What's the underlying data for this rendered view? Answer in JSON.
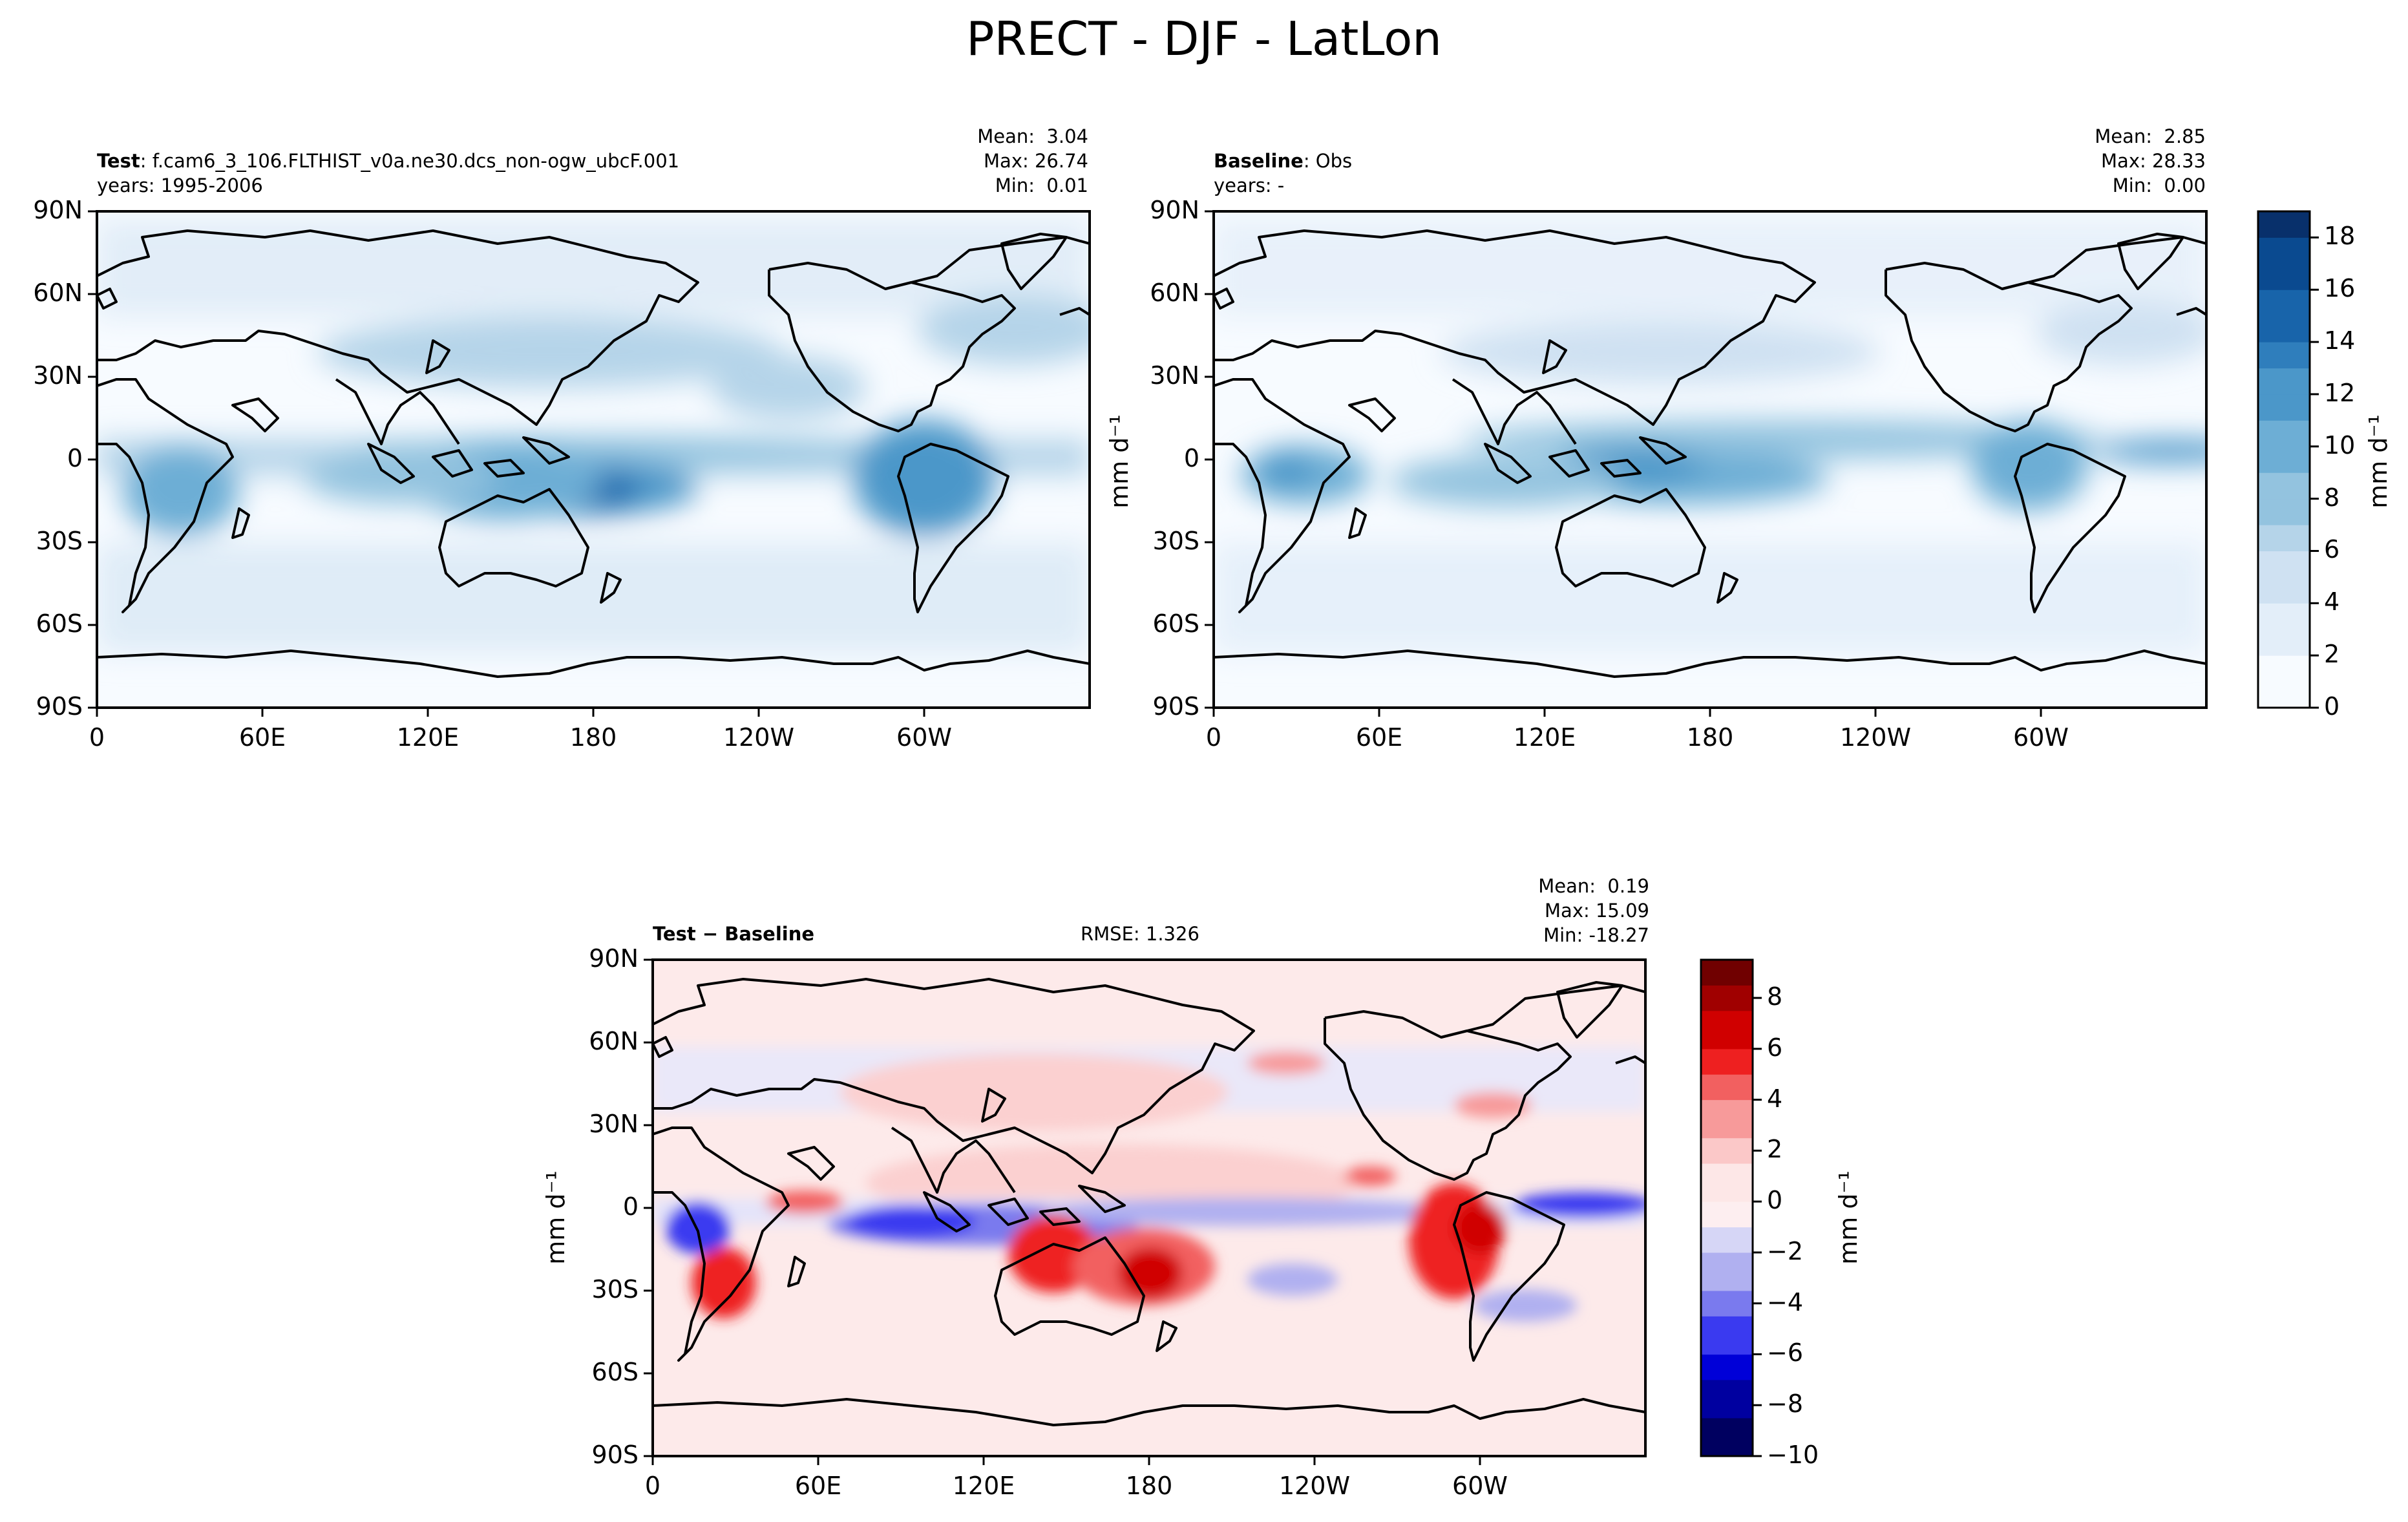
{
  "figure": {
    "title": "PRECT - DJF - LatLon"
  },
  "colors": {
    "sequential": [
      "#f7fbff",
      "#e3eef9",
      "#cfe1f2",
      "#b5d4e9",
      "#93c3df",
      "#6daed5",
      "#4b97c9",
      "#2f7ebc",
      "#1864aa",
      "#0a4a90",
      "#08306b"
    ],
    "diverging_neg": [
      "#fdeef0",
      "#d6d6f6",
      "#b0b0f0",
      "#7a7aee",
      "#3a3af0",
      "#0000d8",
      "#0000a0",
      "#000060"
    ],
    "diverging_pos": [
      "#fde7e7",
      "#fbc8c8",
      "#f79a9a",
      "#f26060",
      "#ee2020",
      "#d00000",
      "#a00000",
      "#700000"
    ],
    "coast": "#000000"
  },
  "panels": {
    "test": {
      "label_bold": "Test",
      "label_text": ": f.cam6_3_106.FLTHIST_v0a.ne30.dcs_non-ogw_ubcF.001",
      "years": "years: 1995-2006",
      "stats": {
        "mean": "Mean:  3.04",
        "max": "Max: 26.74",
        "min": "Min:  0.01"
      }
    },
    "baseline": {
      "label_bold": "Baseline",
      "label_text": ": Obs",
      "years": "years: -",
      "stats": {
        "mean": "Mean:  2.85",
        "max": "Max: 28.33",
        "min": "Min:  0.00"
      }
    },
    "diff": {
      "label_bold": "Test − Baseline",
      "rmse": "RMSE: 1.326",
      "stats": {
        "mean": "Mean:  0.19",
        "max": "Max: 15.09",
        "min": "Min: -18.27"
      }
    }
  },
  "axes": {
    "lon_ticks": [
      "0",
      "60E",
      "120E",
      "180",
      "120W",
      "60W"
    ],
    "lat_ticks": [
      "90N",
      "60N",
      "30N",
      "0",
      "30S",
      "60S",
      "90S"
    ],
    "unit_label": "mm d⁻¹"
  },
  "colorbars": {
    "sequential": {
      "ticks": [
        "0",
        "2",
        "4",
        "6",
        "8",
        "10",
        "12",
        "14",
        "16",
        "18"
      ],
      "range": [
        0,
        19
      ]
    },
    "diverging": {
      "ticks": [
        "−10",
        "−8",
        "−6",
        "−4",
        "−2",
        "0",
        "2",
        "4",
        "6",
        "8"
      ],
      "range": [
        -10,
        9.5
      ]
    }
  },
  "chart_data": [
    {
      "type": "heatmap",
      "title": "",
      "xlabel": "",
      "ylabel": "",
      "x_range": [
        0,
        360
      ],
      "y_range": [
        -90,
        90
      ],
      "zlabel": "mm d⁻¹",
      "stats": {
        "mean": 3.04,
        "max": 26.74,
        "min": 0.01
      },
      "series": [
        {
          "name": "Test",
          "values": []
        }
      ]
    },
    {
      "type": "heatmap",
      "title": "",
      "xlabel": "",
      "ylabel": "mm d⁻¹",
      "x_range": [
        0,
        360
      ],
      "y_range": [
        -90,
        90
      ],
      "zlabel": "mm d⁻¹",
      "stats": {
        "mean": 2.85,
        "max": 28.33,
        "min": 0.0
      },
      "series": [
        {
          "name": "Baseline",
          "values": []
        }
      ]
    },
    {
      "type": "heatmap",
      "title": "",
      "xlabel": "",
      "ylabel": "mm d⁻¹",
      "x_range": [
        0,
        360
      ],
      "y_range": [
        -90,
        90
      ],
      "zlabel": "mm d⁻¹",
      "stats": {
        "mean": 0.19,
        "max": 15.09,
        "min": -18.27,
        "rmse": 1.326
      },
      "series": [
        {
          "name": "Test − Baseline",
          "values": []
        }
      ]
    }
  ]
}
